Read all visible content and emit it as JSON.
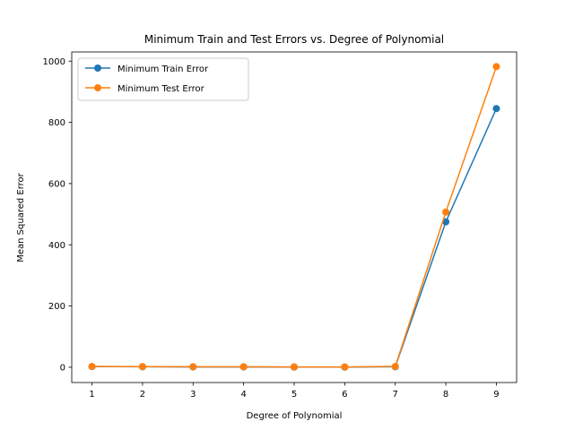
{
  "chart_data": {
    "type": "line",
    "title": "Minimum Train and Test Errors vs. Degree of Polynomial",
    "xlabel": "Degree of Polynomial",
    "ylabel": "Mean Squared Error",
    "x": [
      1,
      2,
      3,
      4,
      5,
      6,
      7,
      8,
      9
    ],
    "xlim": [
      0.6,
      9.4
    ],
    "ylim": [
      -50,
      1030
    ],
    "xticks": [
      1,
      2,
      3,
      4,
      5,
      6,
      7,
      8,
      9
    ],
    "yticks": [
      0,
      200,
      400,
      600,
      800,
      1000
    ],
    "grid": false,
    "legend_position": "upper-left",
    "series": [
      {
        "name": "Minimum Train Error",
        "color": "#1f77b4",
        "marker": "circle",
        "values": [
          2,
          1.5,
          1,
          1,
          0.5,
          0.5,
          1.5,
          475,
          845
        ]
      },
      {
        "name": "Minimum Test Error",
        "color": "#ff7f0e",
        "marker": "circle",
        "values": [
          2.5,
          2,
          1.5,
          1.5,
          1,
          1,
          2.5,
          507,
          982
        ]
      }
    ]
  }
}
